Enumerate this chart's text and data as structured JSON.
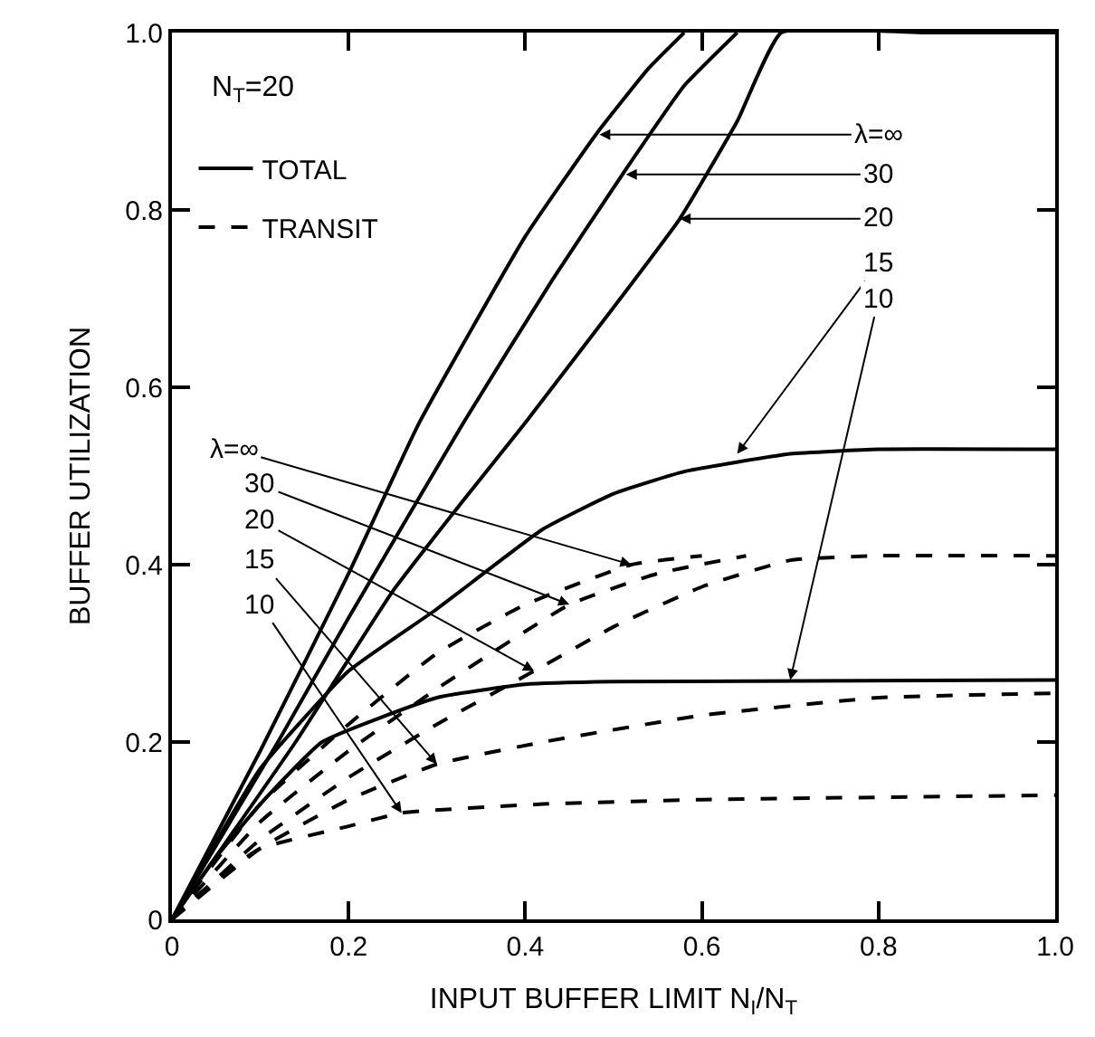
{
  "chart_data": {
    "type": "line",
    "xlabel": "INPUT BUFFER LIMIT N$_{I}$/N$_{T}$",
    "ylabel": "BUFFER UTILIZATION",
    "xlim": [
      0,
      1.0
    ],
    "ylim": [
      0,
      1.0
    ],
    "xticks": [
      0,
      0.2,
      0.4,
      0.6,
      0.8,
      {
        "value": 1.0,
        "label": "1.0"
      }
    ],
    "yticks": [
      0,
      0.2,
      0.4,
      0.6,
      0.8,
      {
        "value": 1.0,
        "label": "1.0"
      }
    ],
    "legend": "top left",
    "marker": "none",
    "series": [
      {
        "name": "TOTAL",
        "color": "#000000",
        "line_style": "solid",
        "x": [
          0,
          0.1,
          0.2,
          0.28,
          0.4,
          0.48,
          0.54,
          0.58
        ],
        "values": [
          0,
          0.19,
          0.39,
          0.56,
          0.77,
          0.885,
          0.96,
          1.0
        ]
      },
      {
        "color": "#000000",
        "line_style": "solid",
        "x": [
          0,
          0.12,
          0.2,
          0.33,
          0.43,
          0.51,
          0.58,
          0.64
        ],
        "values": [
          0,
          0.2,
          0.34,
          0.56,
          0.72,
          0.84,
          0.94,
          1.0
        ]
      },
      {
        "color": "#000000",
        "line_style": "solid",
        "x": [
          0,
          0.14,
          0.25,
          0.32,
          0.4,
          0.5,
          0.575,
          0.64,
          0.69,
          0.85,
          1.0
        ],
        "values": [
          0,
          0.2,
          0.37,
          0.46,
          0.56,
          0.69,
          0.79,
          0.9,
          1.0,
          1.0,
          1.0
        ]
      },
      {
        "color": "#000000",
        "line_style": "solid",
        "x": [
          0,
          0.1,
          0.2,
          0.3,
          0.42,
          0.5,
          0.58,
          0.7,
          0.8,
          1.0
        ],
        "values": [
          0,
          0.17,
          0.28,
          0.35,
          0.44,
          0.48,
          0.505,
          0.525,
          0.53,
          0.53
        ]
      },
      {
        "color": "#000000",
        "line_style": "solid",
        "x": [
          0,
          0.05,
          0.1,
          0.17,
          0.3,
          0.4,
          0.5,
          1.0
        ],
        "values": [
          0,
          0.07,
          0.13,
          0.2,
          0.25,
          0.265,
          0.268,
          0.27
        ]
      },
      {
        "name": "TRANSIT",
        "color": "#000000",
        "line_style": "dashed",
        "x": [
          0,
          0.1,
          0.2,
          0.3,
          0.4,
          0.52,
          0.6
        ],
        "values": [
          0,
          0.13,
          0.22,
          0.3,
          0.355,
          0.4,
          0.41
        ]
      },
      {
        "color": "#000000",
        "line_style": "dashed",
        "x": [
          0,
          0.1,
          0.2,
          0.3,
          0.45,
          0.55,
          0.65
        ],
        "values": [
          0,
          0.11,
          0.19,
          0.26,
          0.355,
          0.39,
          0.41
        ]
      },
      {
        "color": "#000000",
        "line_style": "dashed",
        "x": [
          0,
          0.1,
          0.2,
          0.3,
          0.41,
          0.5,
          0.6,
          0.7,
          0.8,
          1.0
        ],
        "values": [
          0,
          0.09,
          0.16,
          0.22,
          0.28,
          0.33,
          0.375,
          0.405,
          0.41,
          0.41
        ]
      },
      {
        "color": "#000000",
        "line_style": "dashed",
        "x": [
          0,
          0.1,
          0.2,
          0.3,
          0.42,
          0.6,
          0.8,
          1.0
        ],
        "values": [
          0,
          0.08,
          0.135,
          0.175,
          0.2,
          0.23,
          0.25,
          0.255
        ]
      },
      {
        "color": "#000000",
        "line_style": "dashed",
        "x": [
          0,
          0.05,
          0.1,
          0.2,
          0.26,
          0.42,
          0.6,
          1.0
        ],
        "values": [
          0,
          0.045,
          0.08,
          0.105,
          0.12,
          0.13,
          0.135,
          0.14
        ]
      }
    ],
    "annotations": [
      "N$_{T}$=20",
      {
        "text": "λ=∞",
        "x": 0.484,
        "y": 0.885
      },
      {
        "text": "30",
        "x": 0.514,
        "y": 0.84
      },
      {
        "text": "20",
        "x": 0.575,
        "y": 0.79
      },
      {
        "text": "15",
        "x": 0.64,
        "y": 0.525
      },
      {
        "text": "10",
        "x": 0.7,
        "y": 0.27
      },
      {
        "text": "λ=∞",
        "x": 0.52,
        "y": 0.4
      },
      {
        "text": "30",
        "x": 0.45,
        "y": 0.355
      },
      {
        "text": "20",
        "x": 0.41,
        "y": 0.28
      },
      {
        "text": "15",
        "x": 0.3,
        "y": 0.175
      },
      {
        "text": "10",
        "x": 0.26,
        "y": 0.12
      }
    ]
  }
}
